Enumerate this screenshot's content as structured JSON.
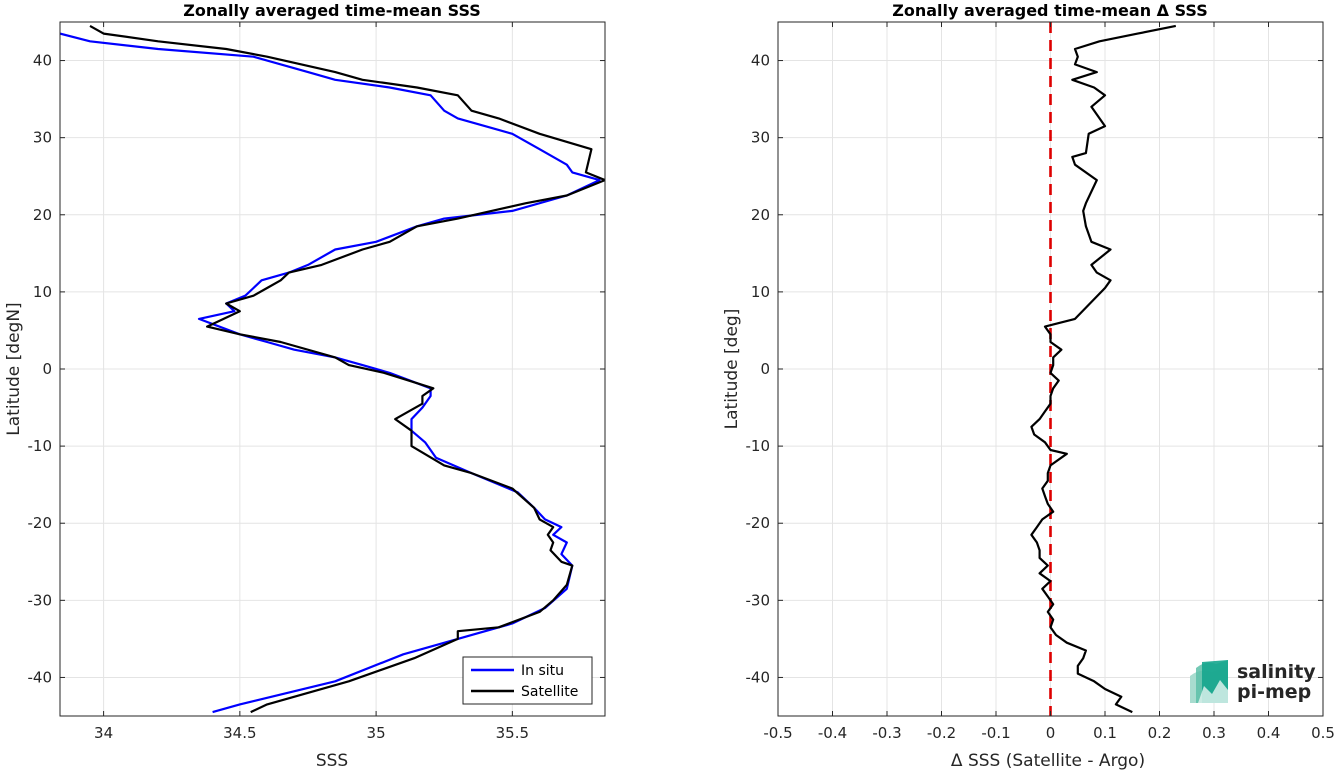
{
  "chart_data": [
    {
      "type": "line",
      "title": "Zonally averaged time-mean SSS",
      "xlabel": "SSS",
      "ylabel": "Latitude [degN]",
      "xlim": [
        33.84,
        35.84
      ],
      "ylim": [
        -45,
        45
      ],
      "xticks": [
        34,
        34.5,
        35,
        35.5
      ],
      "yticks": [
        -40,
        -30,
        -20,
        -10,
        0,
        10,
        20,
        30,
        40
      ],
      "xtick_labels": [
        "34",
        "34.5",
        "35",
        "35.5"
      ],
      "ytick_labels": [
        "-40",
        "-30",
        "-20",
        "-10",
        "0",
        "10",
        "20",
        "30",
        "40"
      ],
      "grid": true,
      "legend": {
        "position": "bottom-right"
      },
      "series": [
        {
          "name": "In situ",
          "color": "#0000ff",
          "points": [
            [
              34.4,
              -44.5
            ],
            [
              34.5,
              -43.5
            ],
            [
              34.85,
              -40.5
            ],
            [
              35.1,
              -37.0
            ],
            [
              35.3,
              -35.0
            ],
            [
              35.5,
              -33.0
            ],
            [
              35.62,
              -31.0
            ],
            [
              35.7,
              -28.5
            ],
            [
              35.72,
              -25.5
            ],
            [
              35.68,
              -24.0
            ],
            [
              35.7,
              -22.5
            ],
            [
              35.65,
              -21.5
            ],
            [
              35.68,
              -20.5
            ],
            [
              35.62,
              -19.5
            ],
            [
              35.58,
              -18.0
            ],
            [
              35.52,
              -16.0
            ],
            [
              35.35,
              -13.5
            ],
            [
              35.22,
              -11.5
            ],
            [
              35.18,
              -9.5
            ],
            [
              35.13,
              -8.0
            ],
            [
              35.13,
              -6.5
            ],
            [
              35.17,
              -5.0
            ],
            [
              35.2,
              -3.5
            ],
            [
              35.2,
              -2.5
            ],
            [
              35.05,
              -0.5
            ],
            [
              34.95,
              0.5
            ],
            [
              34.85,
              1.5
            ],
            [
              34.7,
              2.5
            ],
            [
              34.6,
              3.5
            ],
            [
              34.5,
              4.5
            ],
            [
              34.35,
              6.5
            ],
            [
              34.48,
              7.5
            ],
            [
              34.45,
              8.5
            ],
            [
              34.52,
              9.5
            ],
            [
              34.55,
              10.5
            ],
            [
              34.58,
              11.5
            ],
            [
              34.68,
              12.5
            ],
            [
              34.75,
              13.5
            ],
            [
              34.85,
              15.5
            ],
            [
              35.0,
              16.5
            ],
            [
              35.15,
              18.5
            ],
            [
              35.25,
              19.5
            ],
            [
              35.5,
              20.5
            ],
            [
              35.7,
              22.5
            ],
            [
              35.82,
              24.5
            ],
            [
              35.72,
              25.5
            ],
            [
              35.7,
              26.5
            ],
            [
              35.6,
              28.5
            ],
            [
              35.5,
              30.5
            ],
            [
              35.3,
              32.5
            ],
            [
              35.25,
              33.5
            ],
            [
              35.2,
              35.5
            ],
            [
              35.05,
              36.5
            ],
            [
              34.85,
              37.5
            ],
            [
              34.75,
              38.5
            ],
            [
              34.55,
              40.5
            ],
            [
              34.2,
              41.5
            ],
            [
              33.95,
              42.5
            ],
            [
              33.84,
              43.5
            ],
            [
              33.82,
              44.5
            ]
          ]
        },
        {
          "name": "Satellite",
          "color": "#000000",
          "points": [
            [
              34.54,
              -44.5
            ],
            [
              34.6,
              -43.5
            ],
            [
              34.9,
              -40.5
            ],
            [
              35.14,
              -37.5
            ],
            [
              35.3,
              -35.0
            ],
            [
              35.3,
              -34.0
            ],
            [
              35.45,
              -33.5
            ],
            [
              35.6,
              -31.5
            ],
            [
              35.65,
              -30.0
            ],
            [
              35.7,
              -28.0
            ],
            [
              35.72,
              -25.5
            ],
            [
              35.68,
              -25.0
            ],
            [
              35.64,
              -23.5
            ],
            [
              35.65,
              -22.5
            ],
            [
              35.63,
              -21.5
            ],
            [
              35.65,
              -20.5
            ],
            [
              35.6,
              -19.5
            ],
            [
              35.58,
              -18.0
            ],
            [
              35.5,
              -15.5
            ],
            [
              35.35,
              -13.5
            ],
            [
              35.25,
              -12.5
            ],
            [
              35.13,
              -10.0
            ],
            [
              35.13,
              -8.0
            ],
            [
              35.07,
              -6.5
            ],
            [
              35.17,
              -4.5
            ],
            [
              35.17,
              -3.5
            ],
            [
              35.21,
              -2.5
            ],
            [
              35.03,
              -0.5
            ],
            [
              34.9,
              0.5
            ],
            [
              34.85,
              1.5
            ],
            [
              34.65,
              3.5
            ],
            [
              34.5,
              4.5
            ],
            [
              34.38,
              5.5
            ],
            [
              34.5,
              7.5
            ],
            [
              34.45,
              8.5
            ],
            [
              34.55,
              9.5
            ],
            [
              34.6,
              10.5
            ],
            [
              34.65,
              11.5
            ],
            [
              34.68,
              12.5
            ],
            [
              34.8,
              13.5
            ],
            [
              34.95,
              15.5
            ],
            [
              35.05,
              16.5
            ],
            [
              35.15,
              18.5
            ],
            [
              35.3,
              19.5
            ],
            [
              35.55,
              21.5
            ],
            [
              35.7,
              22.5
            ],
            [
              35.84,
              24.5
            ],
            [
              35.77,
              25.5
            ],
            [
              35.79,
              28.5
            ],
            [
              35.6,
              30.5
            ],
            [
              35.45,
              32.5
            ],
            [
              35.35,
              33.5
            ],
            [
              35.3,
              35.5
            ],
            [
              35.15,
              36.5
            ],
            [
              34.95,
              37.5
            ],
            [
              34.85,
              38.5
            ],
            [
              34.6,
              40.5
            ],
            [
              34.45,
              41.5
            ],
            [
              34.2,
              42.5
            ],
            [
              34.0,
              43.5
            ],
            [
              33.95,
              44.5
            ]
          ]
        }
      ]
    },
    {
      "type": "line",
      "title": "Zonally averaged time-mean Δ SSS",
      "xlabel": "Δ SSS (Satellite - Argo)",
      "ylabel": "Latitude [deg]",
      "xlim": [
        -0.5,
        0.5
      ],
      "ylim": [
        -45,
        45
      ],
      "xticks": [
        -0.5,
        -0.4,
        -0.3,
        -0.2,
        -0.1,
        0,
        0.1,
        0.2,
        0.3,
        0.4,
        0.5
      ],
      "yticks": [
        -40,
        -30,
        -20,
        -10,
        0,
        10,
        20,
        30,
        40
      ],
      "xtick_labels": [
        "-0.5",
        "-0.4",
        "-0.3",
        "-0.2",
        "-0.1",
        "0",
        "0.1",
        "0.2",
        "0.3",
        "0.4",
        "0.5"
      ],
      "ytick_labels": [
        "-40",
        "-30",
        "-20",
        "-10",
        "0",
        "10",
        "20",
        "30",
        "40"
      ],
      "grid": true,
      "reference_line": {
        "x": 0,
        "color": "#dd0000",
        "style": "dashed"
      },
      "series": [
        {
          "color": "#000000",
          "points": [
            [
              0.15,
              -44.5
            ],
            [
              0.12,
              -43.5
            ],
            [
              0.13,
              -42.5
            ],
            [
              0.1,
              -41.5
            ],
            [
              0.08,
              -40.5
            ],
            [
              0.05,
              -39.5
            ],
            [
              0.05,
              -38.5
            ],
            [
              0.06,
              -37.5
            ],
            [
              0.065,
              -36.5
            ],
            [
              0.03,
              -35.5
            ],
            [
              0.01,
              -34.5
            ],
            [
              0.0,
              -33.5
            ],
            [
              0.005,
              -32.5
            ],
            [
              -0.005,
              -31.5
            ],
            [
              0.005,
              -30.5
            ],
            [
              -0.005,
              -29.5
            ],
            [
              -0.015,
              -28.5
            ],
            [
              0.0,
              -27.5
            ],
            [
              -0.02,
              -26.5
            ],
            [
              -0.005,
              -25.5
            ],
            [
              -0.02,
              -24.5
            ],
            [
              -0.02,
              -23.5
            ],
            [
              -0.025,
              -22.5
            ],
            [
              -0.035,
              -21.5
            ],
            [
              -0.025,
              -20.5
            ],
            [
              -0.015,
              -19.5
            ],
            [
              0.005,
              -18.5
            ],
            [
              -0.005,
              -17.5
            ],
            [
              -0.01,
              -16.5
            ],
            [
              -0.015,
              -15.5
            ],
            [
              -0.005,
              -14.5
            ],
            [
              -0.005,
              -13.5
            ],
            [
              0.0,
              -12.5
            ],
            [
              0.03,
              -11.0
            ],
            [
              0.0,
              -10.5
            ],
            [
              -0.01,
              -9.5
            ],
            [
              -0.03,
              -8.5
            ],
            [
              -0.035,
              -7.5
            ],
            [
              -0.02,
              -6.5
            ],
            [
              -0.01,
              -5.5
            ],
            [
              0.0,
              -4.5
            ],
            [
              0.0,
              -3.5
            ],
            [
              0.005,
              -2.5
            ],
            [
              0.015,
              -1.5
            ],
            [
              0.0,
              -0.5
            ],
            [
              0.005,
              0.5
            ],
            [
              0.005,
              1.5
            ],
            [
              0.02,
              2.5
            ],
            [
              0.0,
              3.5
            ],
            [
              0.0,
              4.5
            ],
            [
              -0.01,
              5.5
            ],
            [
              0.045,
              6.5
            ],
            [
              0.1,
              10.5
            ],
            [
              0.11,
              11.5
            ],
            [
              0.085,
              12.5
            ],
            [
              0.075,
              13.5
            ],
            [
              0.11,
              15.5
            ],
            [
              0.075,
              16.5
            ],
            [
              0.065,
              18.5
            ],
            [
              0.06,
              20.5
            ],
            [
              0.065,
              21.5
            ],
            [
              0.085,
              24.5
            ],
            [
              0.045,
              26.5
            ],
            [
              0.04,
              27.5
            ],
            [
              0.065,
              28.0
            ],
            [
              0.07,
              30.5
            ],
            [
              0.1,
              31.5
            ],
            [
              0.075,
              34.0
            ],
            [
              0.1,
              35.5
            ],
            [
              0.08,
              36.5
            ],
            [
              0.04,
              37.5
            ],
            [
              0.085,
              38.5
            ],
            [
              0.045,
              39.5
            ],
            [
              0.05,
              40.5
            ],
            [
              0.045,
              41.5
            ],
            [
              0.09,
              42.5
            ],
            [
              0.16,
              43.5
            ],
            [
              0.23,
              44.5
            ]
          ]
        }
      ]
    }
  ],
  "logo": {
    "line1": "salinity",
    "line2": "pi-mep",
    "color": "#16a68e"
  }
}
